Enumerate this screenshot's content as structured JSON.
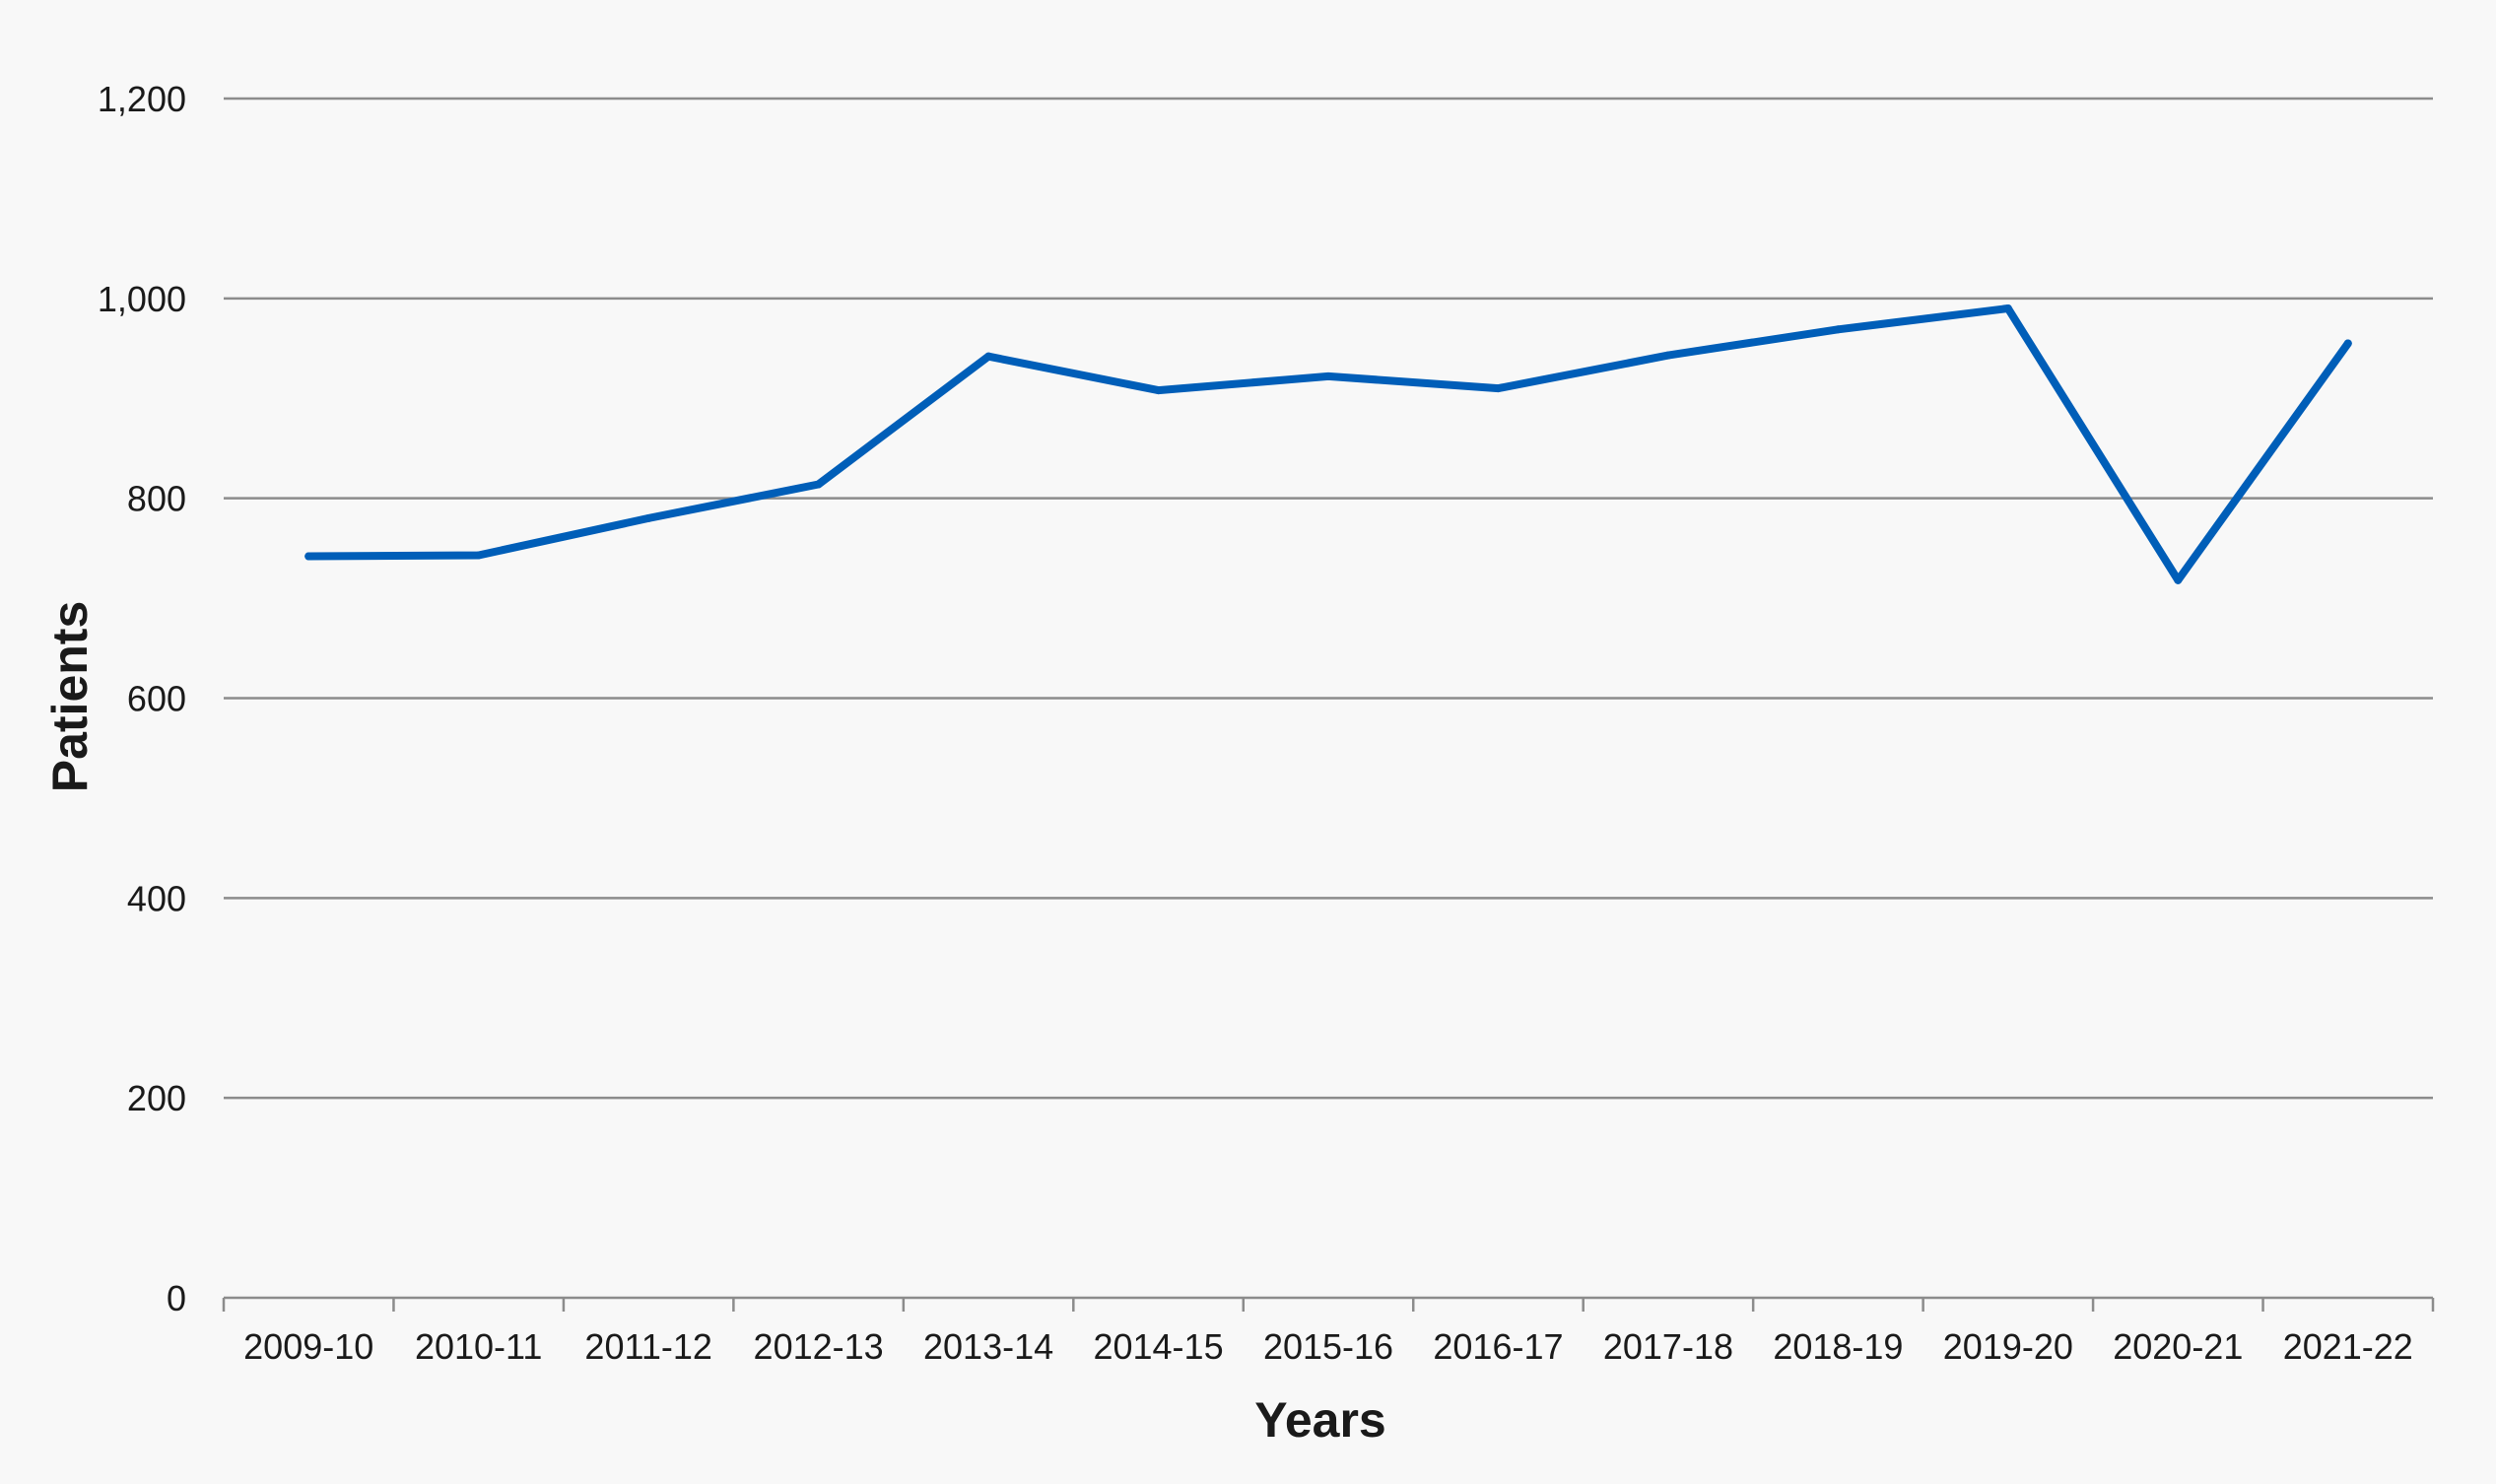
{
  "chart_data": {
    "type": "line",
    "title": "",
    "xlabel": "Years",
    "ylabel": "Patients",
    "categories": [
      "2009-10",
      "2010-11",
      "2011-12",
      "2012-13",
      "2013-14",
      "2014-15",
      "2015-16",
      "2016-17",
      "2017-18",
      "2018-19",
      "2019-20",
      "2020-21",
      "2021-22"
    ],
    "series": [
      {
        "values": [
          742,
          743,
          780,
          814,
          942,
          908,
          922,
          910,
          943,
          969,
          990,
          718,
          955
        ],
        "color": "#005eb8"
      }
    ],
    "ylim": [
      0,
      1200
    ],
    "yticks": [
      0,
      200,
      400,
      600,
      800,
      1000,
      1200
    ],
    "ytick_labels": [
      "0",
      "200",
      "400",
      "600",
      "800",
      "1,000",
      "1,200"
    ],
    "grid": true,
    "legend": "none"
  }
}
